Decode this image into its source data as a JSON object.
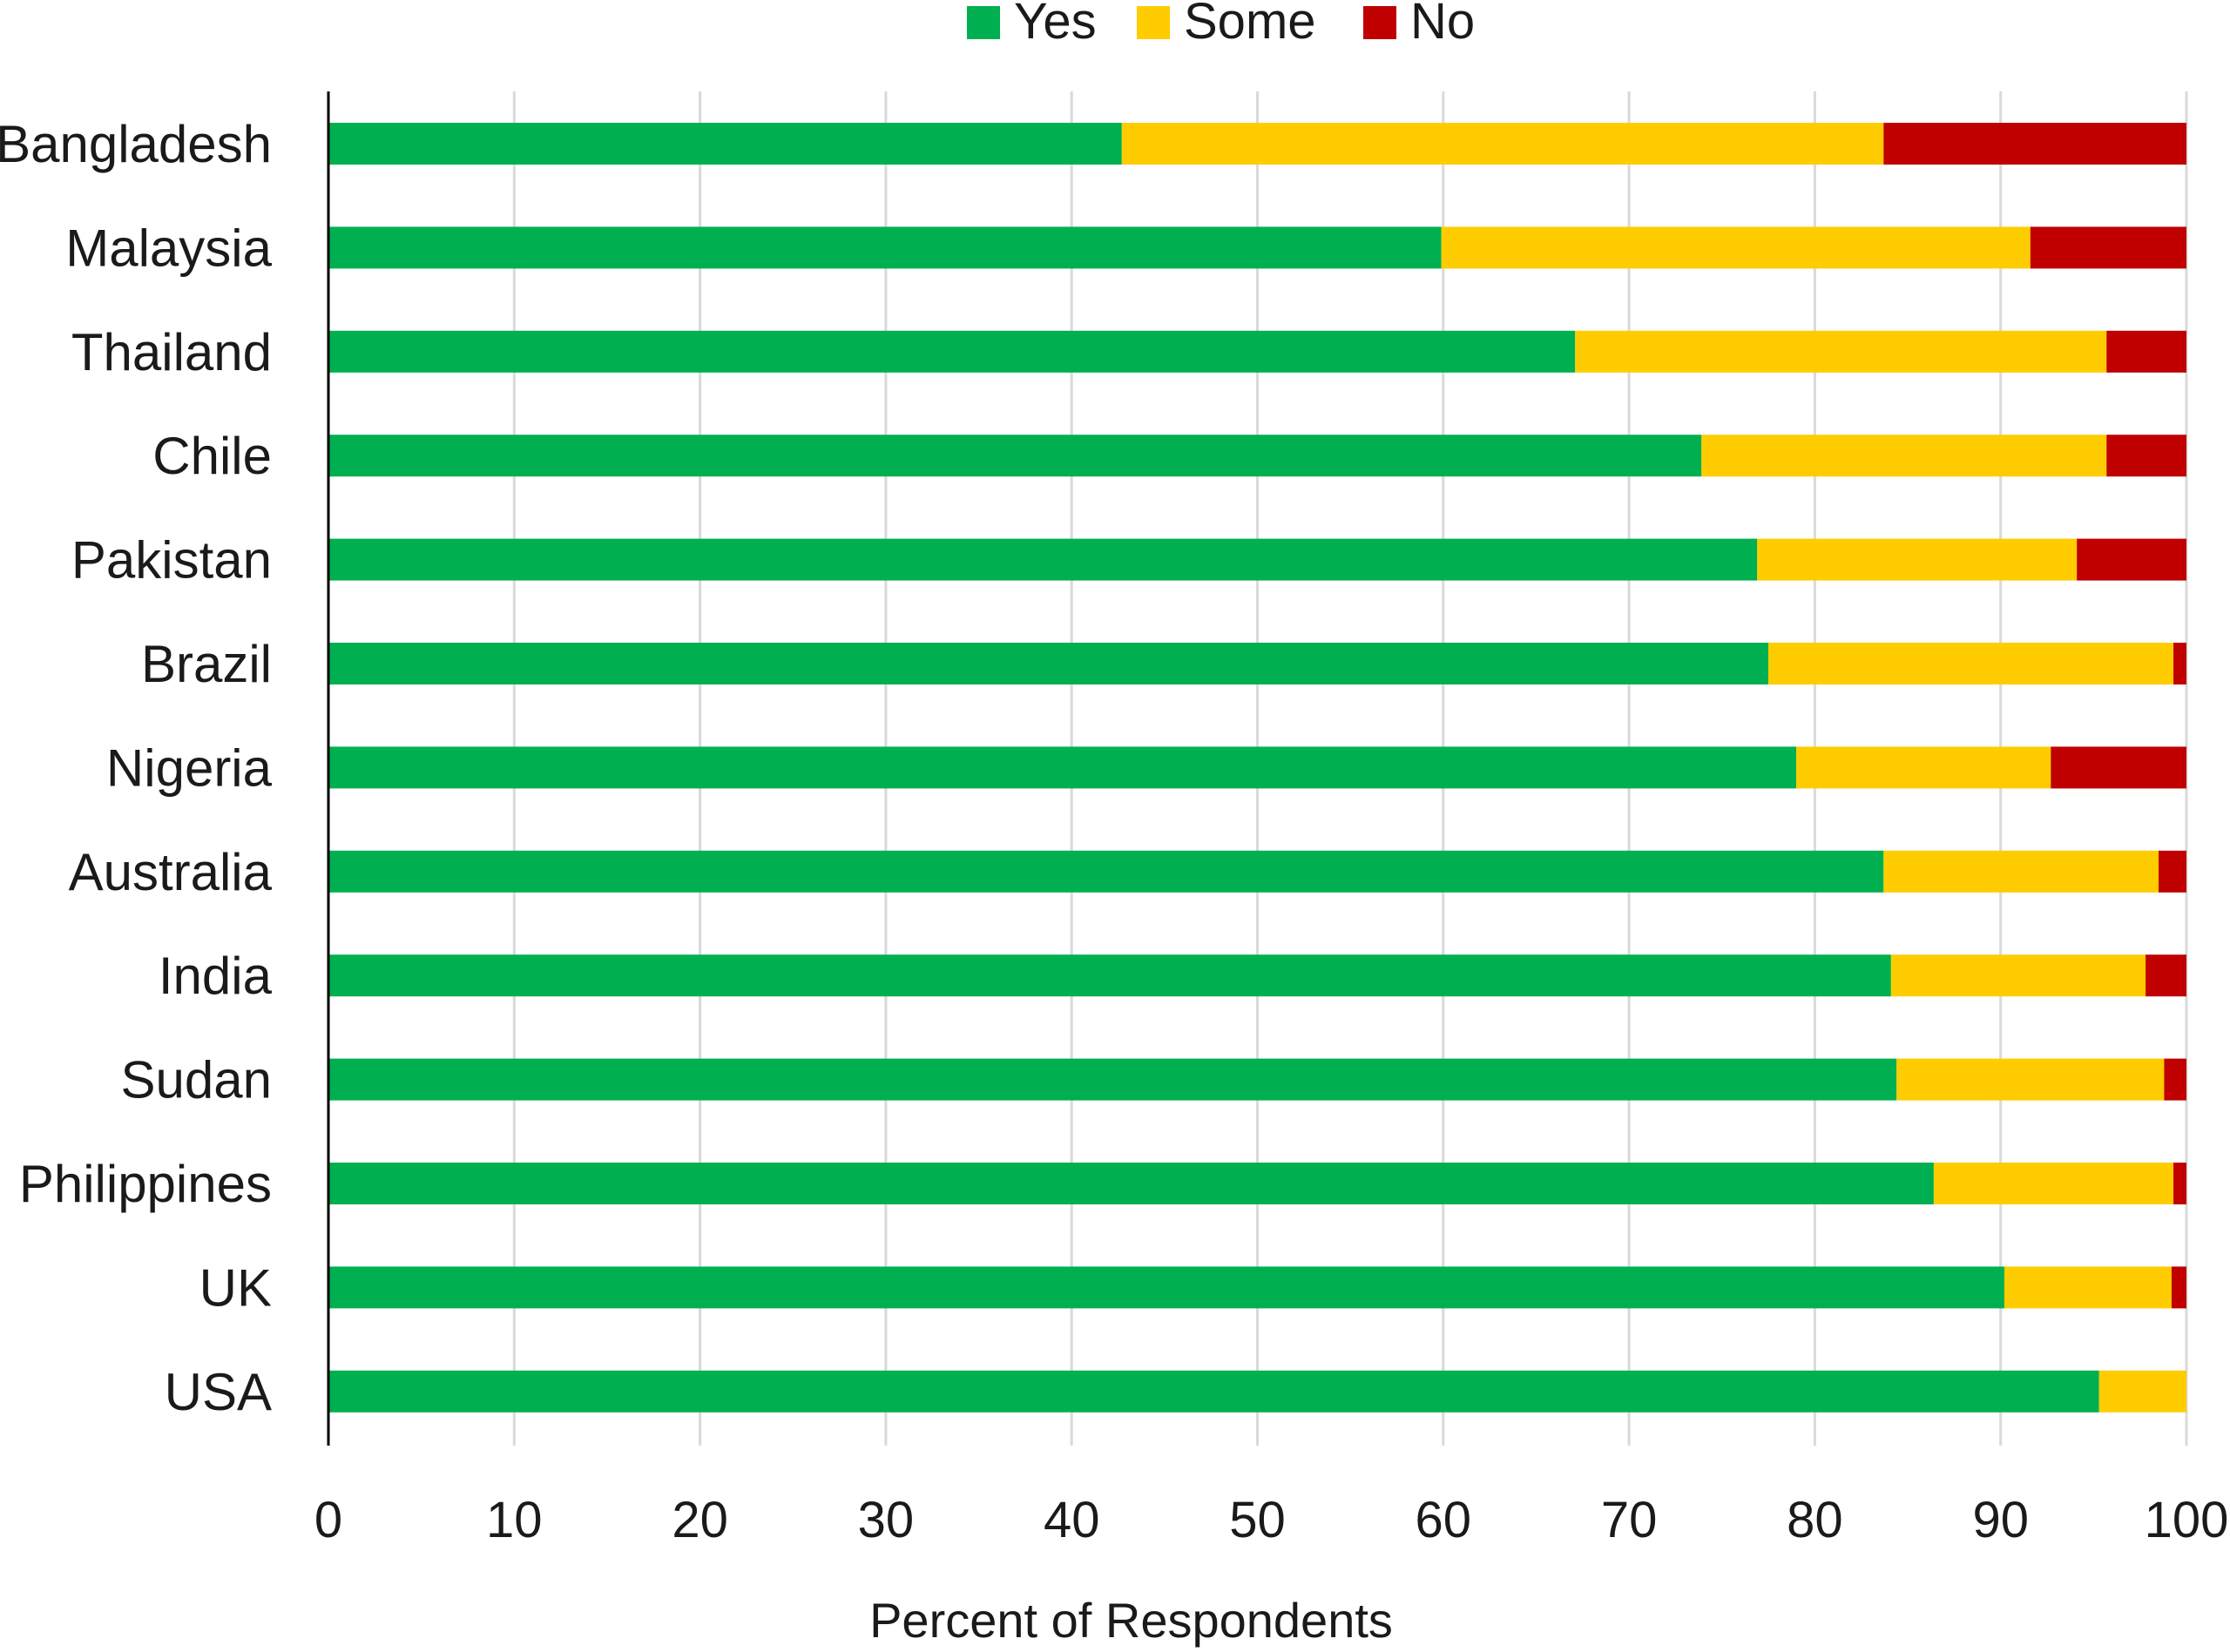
{
  "chart_data": {
    "type": "bar",
    "orientation": "horizontal",
    "stacked": true,
    "title": "",
    "xlabel": "Percent of Respondents",
    "ylabel": "",
    "xlim": [
      0,
      100
    ],
    "xticks": [
      0,
      10,
      20,
      30,
      40,
      50,
      60,
      70,
      80,
      90,
      100
    ],
    "grid": true,
    "legend_position": "top-center",
    "categories": [
      "Bangladesh",
      "Malaysia",
      "Thailand",
      "Chile",
      "Pakistan",
      "Brazil",
      "Nigeria",
      "Australia",
      "India",
      "Sudan",
      "Philippines",
      "UK",
      "USA"
    ],
    "series": [
      {
        "name": "Yes",
        "color": "#00b050",
        "values": [
          42.7,
          59.9,
          67.1,
          73.9,
          76.9,
          77.5,
          79.0,
          83.7,
          84.1,
          84.4,
          86.4,
          90.2,
          95.3
        ]
      },
      {
        "name": "Some",
        "color": "#ffcc00",
        "values": [
          41.0,
          31.7,
          28.6,
          21.8,
          17.2,
          21.8,
          13.7,
          14.8,
          13.7,
          14.4,
          12.9,
          9.0,
          4.7
        ]
      },
      {
        "name": "No",
        "color": "#c00000",
        "values": [
          16.3,
          8.4,
          4.3,
          4.3,
          5.9,
          0.7,
          7.3,
          1.5,
          2.2,
          1.2,
          0.7,
          0.8,
          0.0
        ]
      }
    ]
  }
}
